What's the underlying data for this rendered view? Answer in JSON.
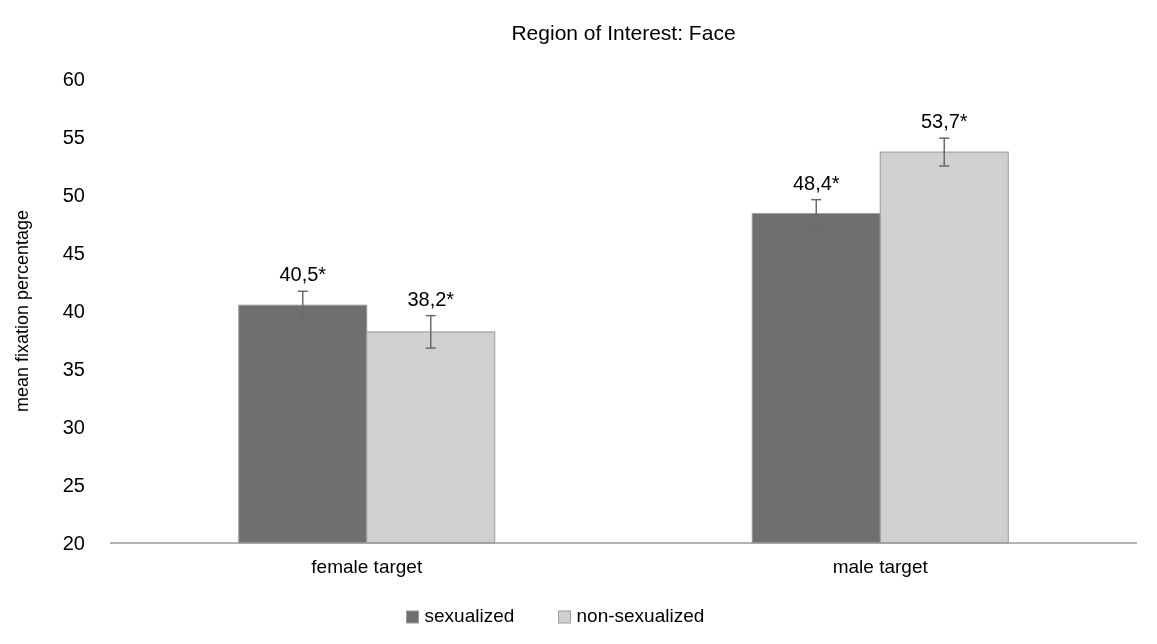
{
  "chart_data": {
    "type": "bar",
    "title": "Region of Interest: Face",
    "ylabel": "mean fixation percentage",
    "categories": [
      "female target",
      "male target"
    ],
    "series": [
      {
        "name": "sexualized",
        "color": "#6f6f6f",
        "values": [
          40.5,
          48.4
        ],
        "errors": [
          1.2,
          1.2
        ],
        "value_labels": [
          "40,5*",
          "48,4*"
        ]
      },
      {
        "name": "non-sexualized",
        "color": "#d0cfd1",
        "values": [
          38.2,
          53.7
        ],
        "errors": [
          1.4,
          1.2
        ],
        "value_labels": [
          "38,2*",
          "53,7*"
        ]
      }
    ],
    "ylim": [
      20,
      60
    ],
    "yticks": [
      20,
      25,
      30,
      35,
      40,
      45,
      50,
      55,
      60
    ],
    "grid": false,
    "legend": "bottom"
  }
}
